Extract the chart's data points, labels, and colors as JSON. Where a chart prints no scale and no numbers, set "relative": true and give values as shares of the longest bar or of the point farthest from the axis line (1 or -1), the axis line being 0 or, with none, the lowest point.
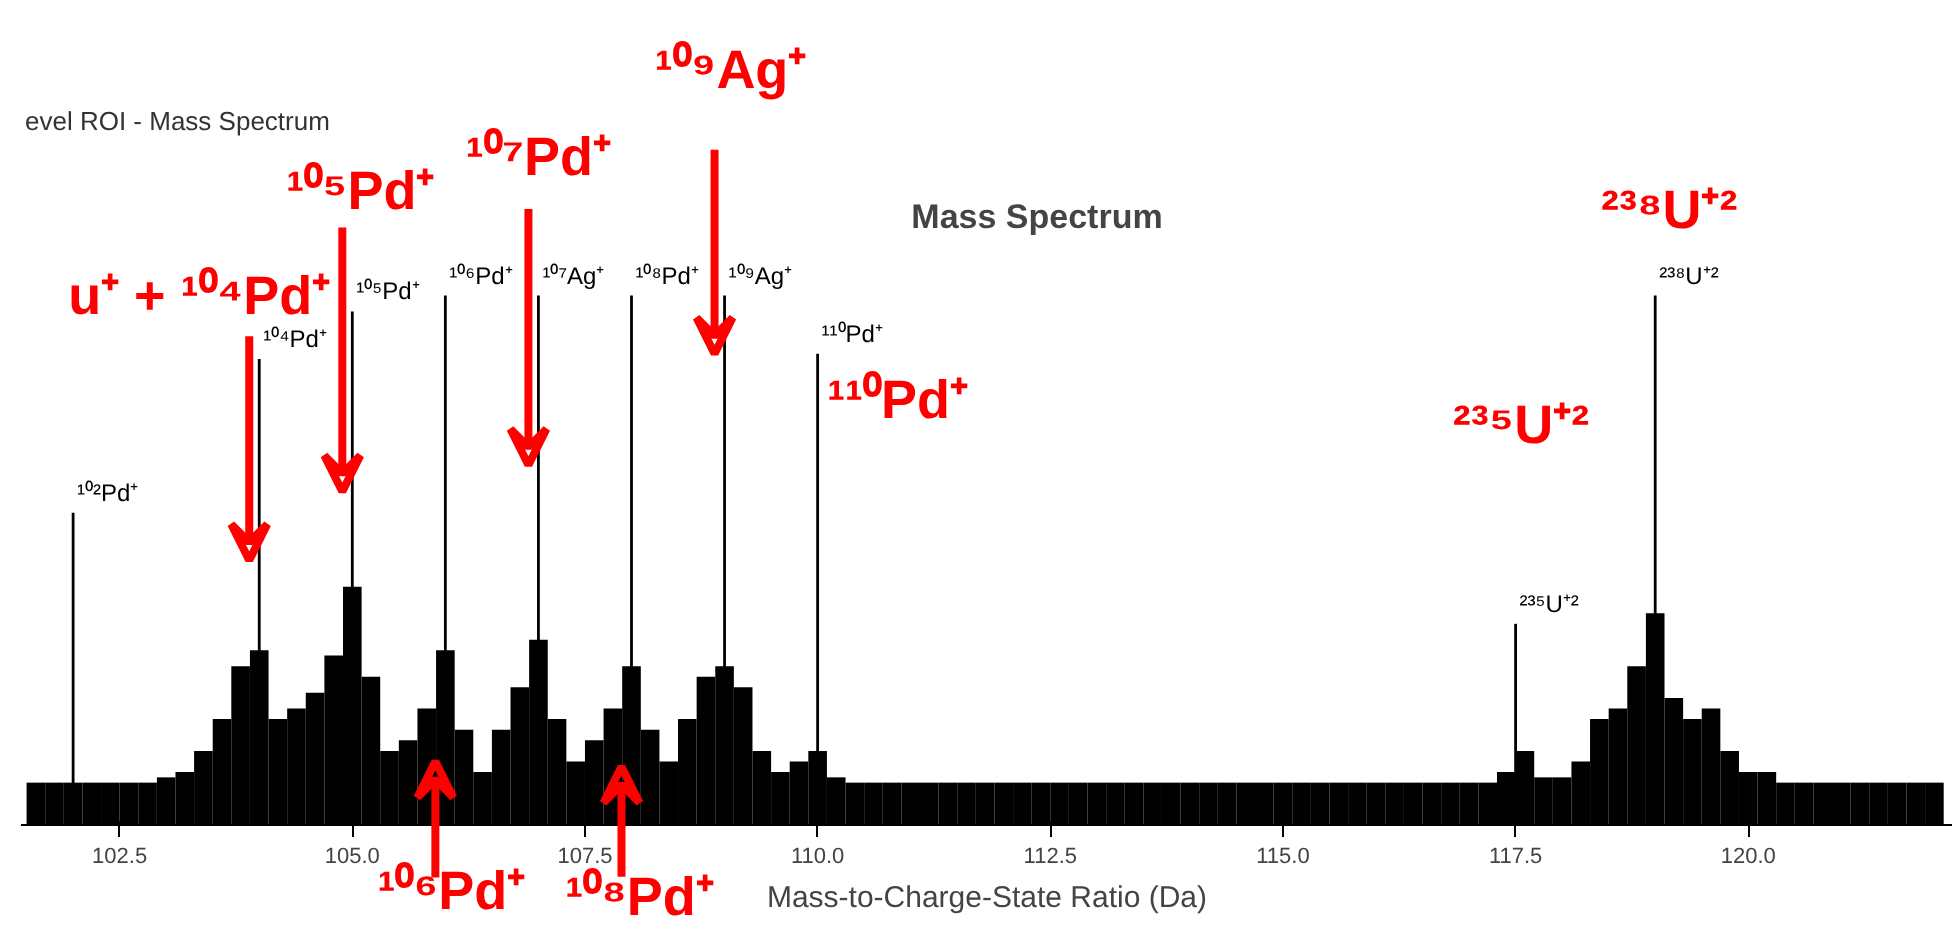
{
  "chart_data": {
    "type": "bar",
    "relative": true,
    "title": "Mass Spectrum",
    "xlabel": "Mass-to-Charge-State Ratio (Da)",
    "xlim": [
      101.44,
      122.2
    ],
    "xticks": [
      102.5,
      {
        "value": 105,
        "label": "105.0"
      },
      107.5,
      {
        "value": 110,
        "label": "110.0"
      },
      112.5,
      {
        "value": 115,
        "label": "115.0"
      },
      117.5,
      {
        "value": 120,
        "label": "120.0"
      }
    ],
    "series": [
      {
        "color": "#000000",
        "x": [
          101.6,
          101.8,
          102.0,
          102.2,
          102.4,
          102.6,
          102.8,
          103.0,
          103.2,
          103.4,
          103.6,
          103.8,
          104.0,
          104.2,
          104.4,
          104.6,
          104.8,
          105.0,
          105.2,
          105.4,
          105.6,
          105.8,
          106.0,
          106.2,
          106.4,
          106.6,
          106.8,
          107.0,
          107.2,
          107.4,
          107.6,
          107.8,
          108.0,
          108.2,
          108.4,
          108.6,
          108.8,
          109.0,
          109.2,
          109.4,
          109.6,
          109.8,
          110.0,
          110.2,
          110.4,
          110.6,
          110.8,
          111.0,
          111.2,
          111.4,
          111.6,
          111.8,
          112.0,
          112.2,
          112.4,
          112.6,
          112.8,
          113.0,
          113.2,
          113.4,
          113.6,
          113.8,
          114.0,
          114.2,
          114.4,
          114.6,
          114.8,
          115.0,
          115.2,
          115.4,
          115.6,
          115.8,
          116.0,
          116.2,
          116.4,
          116.6,
          116.8,
          117.0,
          117.2,
          117.4,
          117.6,
          117.8,
          118.0,
          118.2,
          118.4,
          118.6,
          118.8,
          119.0,
          119.2,
          119.4,
          119.6,
          119.8,
          120.0,
          120.2,
          120.4,
          120.6,
          120.8,
          121.0,
          121.2,
          121.4,
          121.6,
          121.8,
          122.0
        ],
        "values": [
          0.08,
          0.08,
          0.08,
          0.08,
          0.08,
          0.08,
          0.08,
          0.09,
          0.1,
          0.14,
          0.2,
          0.3,
          0.33,
          0.2,
          0.22,
          0.25,
          0.32,
          0.45,
          0.28,
          0.14,
          0.16,
          0.22,
          0.33,
          0.18,
          0.1,
          0.18,
          0.26,
          0.35,
          0.2,
          0.12,
          0.16,
          0.22,
          0.3,
          0.18,
          0.12,
          0.2,
          0.28,
          0.3,
          0.26,
          0.14,
          0.1,
          0.12,
          0.14,
          0.09,
          0.08,
          0.08,
          0.08,
          0.08,
          0.08,
          0.08,
          0.08,
          0.08,
          0.08,
          0.08,
          0.08,
          0.08,
          0.08,
          0.08,
          0.08,
          0.08,
          0.08,
          0.08,
          0.08,
          0.08,
          0.08,
          0.08,
          0.08,
          0.08,
          0.08,
          0.08,
          0.08,
          0.08,
          0.08,
          0.08,
          0.08,
          0.08,
          0.08,
          0.08,
          0.08,
          0.1,
          0.14,
          0.09,
          0.09,
          0.12,
          0.2,
          0.22,
          0.3,
          0.4,
          0.24,
          0.2,
          0.22,
          0.14,
          0.1,
          0.1,
          0.08,
          0.08,
          0.08,
          0.08,
          0.08,
          0.08,
          0.08,
          0.08,
          0.08
        ]
      },
      {
        "color": "#000000",
        "x": [
          102,
          104,
          105,
          106,
          107,
          108,
          109,
          110,
          117.5,
          119
        ],
        "values": [
          0.59,
          0.88,
          0.97,
          1.0,
          1.0,
          1.0,
          1.0,
          0.89,
          0.38,
          1.0
        ]
      }
    ],
    "annotations": [
      "evel ROI - Mass Spectrum",
      {
        "text": "¹⁰²Pd⁺",
        "x": 102,
        "y": 0.59
      },
      {
        "text": "¹⁰⁴Pd⁺",
        "x": 104,
        "y": 0.88
      },
      {
        "text": "¹⁰⁵Pd⁺",
        "x": 105,
        "y": 0.97
      },
      {
        "text": "¹⁰⁶Pd⁺",
        "x": 106,
        "y": 1.0
      },
      {
        "text": "¹⁰⁷Ag⁺",
        "x": 107,
        "y": 1.0
      },
      {
        "text": "¹⁰⁸Pd⁺",
        "x": 108,
        "y": 1.0
      },
      {
        "text": "¹⁰⁹Ag⁺",
        "x": 109,
        "y": 1.0
      },
      {
        "text": "¹¹⁰Pd⁺",
        "x": 110,
        "y": 0.89
      },
      {
        "text": "²³⁵U⁺²",
        "x": 117.5,
        "y": 0.38
      },
      {
        "text": "²³⁸U⁺²",
        "x": 119,
        "y": 1.0
      },
      {
        "text": "u⁺ + ¹⁰⁴Pd⁺",
        "x": 104,
        "y": 0.5
      },
      {
        "text": "¹⁰⁵Pd⁺",
        "x": 105,
        "y": 0.63
      },
      {
        "text": "¹⁰⁷Pd⁺",
        "x": 107,
        "y": 0.68
      },
      {
        "text": "¹⁰⁹Ag⁺",
        "x": 109,
        "y": 0.89
      },
      {
        "text": "¹¹⁰Pd⁺",
        "x": 110,
        "y": 0.89
      },
      "²³⁵U⁺²",
      {
        "text": "²³⁸U⁺²",
        "x": 119,
        "y": 1.0
      },
      {
        "text": "¹⁰⁶Pd⁺",
        "x": 106,
        "y": 0.12
      },
      {
        "text": "¹⁰⁸Pd⁺",
        "x": 108,
        "y": 0.11
      }
    ]
  }
}
